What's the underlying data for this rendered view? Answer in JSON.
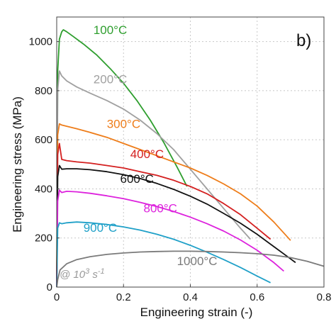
{
  "chart_data": {
    "type": "line",
    "panel_label": "b)",
    "xlabel": "Engineering strain (-)",
    "ylabel": "Engineering stress (MPa)",
    "xlim": [
      0,
      0.8
    ],
    "ylim": [
      0,
      1100
    ],
    "x_ticks": [
      "0",
      "0.2",
      "0.4",
      "0.6",
      "0.8"
    ],
    "y_ticks": [
      "0",
      "200",
      "400",
      "600",
      "800",
      "1000"
    ],
    "grid": true,
    "legend": "inline labels",
    "note": {
      "prefix": "@ 10",
      "exponent": "3",
      "mid": " s",
      "exponent2": "-1"
    },
    "series": [
      {
        "name": "100°C",
        "color": "#2e9e2e",
        "x": [
          0.0,
          0.003,
          0.008,
          0.015,
          0.02,
          0.03,
          0.05,
          0.08,
          0.12,
          0.16,
          0.2,
          0.24,
          0.28,
          0.32,
          0.36,
          0.39
        ],
        "y": [
          0,
          880,
          1010,
          1040,
          1048,
          1040,
          1020,
          990,
          945,
          890,
          830,
          760,
          680,
          590,
          490,
          410
        ]
      },
      {
        "name": "200°C",
        "color": "#a0a0a0",
        "x": [
          0.0,
          0.003,
          0.008,
          0.015,
          0.03,
          0.06,
          0.1,
          0.15,
          0.2,
          0.25,
          0.3,
          0.35,
          0.4,
          0.45,
          0.5,
          0.55,
          0.58
        ],
        "y": [
          0,
          800,
          880,
          860,
          840,
          815,
          790,
          760,
          725,
          680,
          625,
          560,
          480,
          400,
          320,
          240,
          195
        ]
      },
      {
        "name": "300°C",
        "color": "#ee7d1a",
        "x": [
          0.0,
          0.003,
          0.008,
          0.015,
          0.03,
          0.06,
          0.1,
          0.15,
          0.2,
          0.25,
          0.3,
          0.35,
          0.4,
          0.45,
          0.5,
          0.55,
          0.6,
          0.65,
          0.7
        ],
        "y": [
          0,
          620,
          665,
          660,
          655,
          645,
          630,
          610,
          585,
          560,
          535,
          510,
          485,
          455,
          420,
          380,
          330,
          265,
          190
        ]
      },
      {
        "name": "400°C",
        "color": "#d42020",
        "x": [
          0.0,
          0.003,
          0.008,
          0.015,
          0.03,
          0.06,
          0.1,
          0.15,
          0.2,
          0.25,
          0.3,
          0.35,
          0.4,
          0.45,
          0.5,
          0.55,
          0.6,
          0.64
        ],
        "y": [
          0,
          540,
          585,
          520,
          515,
          510,
          505,
          495,
          485,
          470,
          455,
          435,
          410,
          380,
          340,
          295,
          240,
          195
        ]
      },
      {
        "name": "600°C",
        "color": "#111111",
        "x": [
          0.0,
          0.003,
          0.008,
          0.015,
          0.03,
          0.06,
          0.1,
          0.15,
          0.2,
          0.25,
          0.3,
          0.35,
          0.4,
          0.45,
          0.5,
          0.55,
          0.6,
          0.65,
          0.7,
          0.715
        ],
        "y": [
          0,
          450,
          495,
          480,
          482,
          482,
          478,
          470,
          458,
          442,
          422,
          398,
          370,
          338,
          300,
          260,
          215,
          165,
          115,
          100
        ]
      },
      {
        "name": "800°C",
        "color": "#dd22dd",
        "x": [
          0.0,
          0.003,
          0.008,
          0.015,
          0.03,
          0.06,
          0.1,
          0.15,
          0.2,
          0.25,
          0.3,
          0.35,
          0.4,
          0.45,
          0.5,
          0.55,
          0.6,
          0.65,
          0.68
        ],
        "y": [
          0,
          350,
          395,
          385,
          390,
          388,
          382,
          372,
          360,
          345,
          328,
          308,
          285,
          258,
          228,
          192,
          150,
          100,
          65
        ]
      },
      {
        "name": "900°C",
        "color": "#1fa0c8",
        "x": [
          0.0,
          0.003,
          0.008,
          0.015,
          0.03,
          0.06,
          0.1,
          0.15,
          0.2,
          0.25,
          0.3,
          0.35,
          0.4,
          0.45,
          0.5,
          0.55,
          0.6,
          0.64
        ],
        "y": [
          0,
          240,
          262,
          258,
          262,
          265,
          262,
          255,
          245,
          232,
          215,
          195,
          170,
          142,
          112,
          80,
          45,
          18
        ]
      },
      {
        "name": "1000°C",
        "color": "#7a7a7a",
        "x": [
          0.0,
          0.003,
          0.01,
          0.03,
          0.06,
          0.1,
          0.15,
          0.2,
          0.25,
          0.3,
          0.35,
          0.4,
          0.45,
          0.5,
          0.55,
          0.6,
          0.65,
          0.7,
          0.75,
          0.8
        ],
        "y": [
          0,
          30,
          70,
          95,
          112,
          124,
          133,
          139,
          143,
          145,
          146,
          146,
          145,
          143,
          140,
          136,
          130,
          120,
          105,
          85
        ]
      }
    ]
  }
}
